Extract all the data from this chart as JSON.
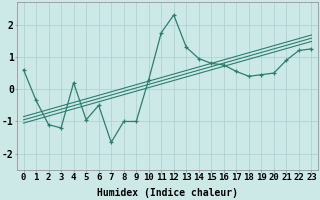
{
  "x": [
    0,
    1,
    2,
    3,
    4,
    5,
    6,
    7,
    8,
    9,
    10,
    11,
    12,
    13,
    14,
    15,
    16,
    17,
    18,
    19,
    20,
    21,
    22,
    23
  ],
  "main_line": [
    0.6,
    -0.35,
    -1.1,
    -1.2,
    0.2,
    -0.95,
    -0.5,
    -1.65,
    -1.0,
    -1.0,
    0.3,
    1.75,
    2.3,
    1.3,
    0.95,
    0.8,
    0.75,
    0.55,
    0.4,
    0.45,
    0.5,
    0.9,
    1.2,
    1.25
  ],
  "reg_line1": [
    -0.85,
    -0.74,
    -0.63,
    -0.52,
    -0.41,
    -0.3,
    -0.19,
    -0.08,
    0.03,
    0.14,
    0.25,
    0.36,
    0.47,
    0.58,
    0.69,
    0.8,
    0.91,
    1.02,
    1.13,
    1.24,
    1.35,
    1.46,
    1.57,
    1.68
  ],
  "reg_line2": [
    -0.95,
    -0.84,
    -0.73,
    -0.62,
    -0.51,
    -0.4,
    -0.29,
    -0.18,
    -0.07,
    0.04,
    0.15,
    0.26,
    0.37,
    0.48,
    0.59,
    0.7,
    0.81,
    0.92,
    1.03,
    1.14,
    1.25,
    1.36,
    1.47,
    1.58
  ],
  "reg_line3": [
    -1.05,
    -0.94,
    -0.83,
    -0.72,
    -0.61,
    -0.5,
    -0.39,
    -0.28,
    -0.17,
    -0.06,
    0.05,
    0.16,
    0.27,
    0.38,
    0.49,
    0.6,
    0.71,
    0.82,
    0.93,
    1.04,
    1.15,
    1.26,
    1.37,
    1.48
  ],
  "line_color": "#2d7d6e",
  "bg_color": "#cce9e7",
  "grid_color": "#aed4d1",
  "xlabel": "Humidex (Indice chaleur)",
  "ylim": [
    -2.5,
    2.7
  ],
  "xlim": [
    -0.5,
    23.5
  ],
  "xlabel_fontsize": 7,
  "tick_fontsize": 6.5
}
